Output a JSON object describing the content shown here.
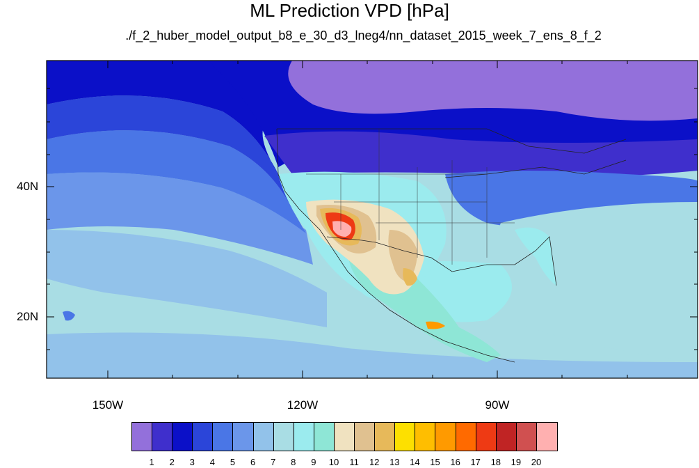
{
  "title": "ML Prediction VPD [hPa]",
  "subtitle": "./f_2_huber_model_output_b8_e_30_d3_lneg4/nn_dataset_2015_week_7_ens_8_f_2",
  "lat_labels": [
    "40N",
    "20N"
  ],
  "lon_labels": [
    "150W",
    "120W",
    "90W"
  ],
  "colorbar": {
    "labels": [
      "1",
      "2",
      "3",
      "4",
      "5",
      "6",
      "7",
      "8",
      "9",
      "10",
      "11",
      "12",
      "13",
      "14",
      "15",
      "16",
      "17",
      "18",
      "19",
      "20"
    ],
    "colors": [
      "#9370db",
      "#3f2fcc",
      "#0b10c8",
      "#2b45d9",
      "#4a76e6",
      "#6b96ea",
      "#92c2ea",
      "#a9dde4",
      "#9bebee",
      "#8ee6d6",
      "#f0e2c0",
      "#e0c190",
      "#e7b95a",
      "#fde000",
      "#ffbe00",
      "#ff9a00",
      "#ff6a00",
      "#ee3a14",
      "#c02424",
      "#d05050",
      "#ffb0b0"
    ]
  },
  "map_colors": {
    "ocean_low": "#a9dde4",
    "ocean_mid": "#92c2ea",
    "north_band": "#4a76e6",
    "canada_dark": "#0b10c8",
    "canada_purple": "#9370db",
    "us_east": "#2b45d9",
    "desert_hot": "#ee3a14",
    "desert_core": "#ffb0b0",
    "desert_warm": "#e0c190",
    "desert_yellow": "#fde000"
  }
}
